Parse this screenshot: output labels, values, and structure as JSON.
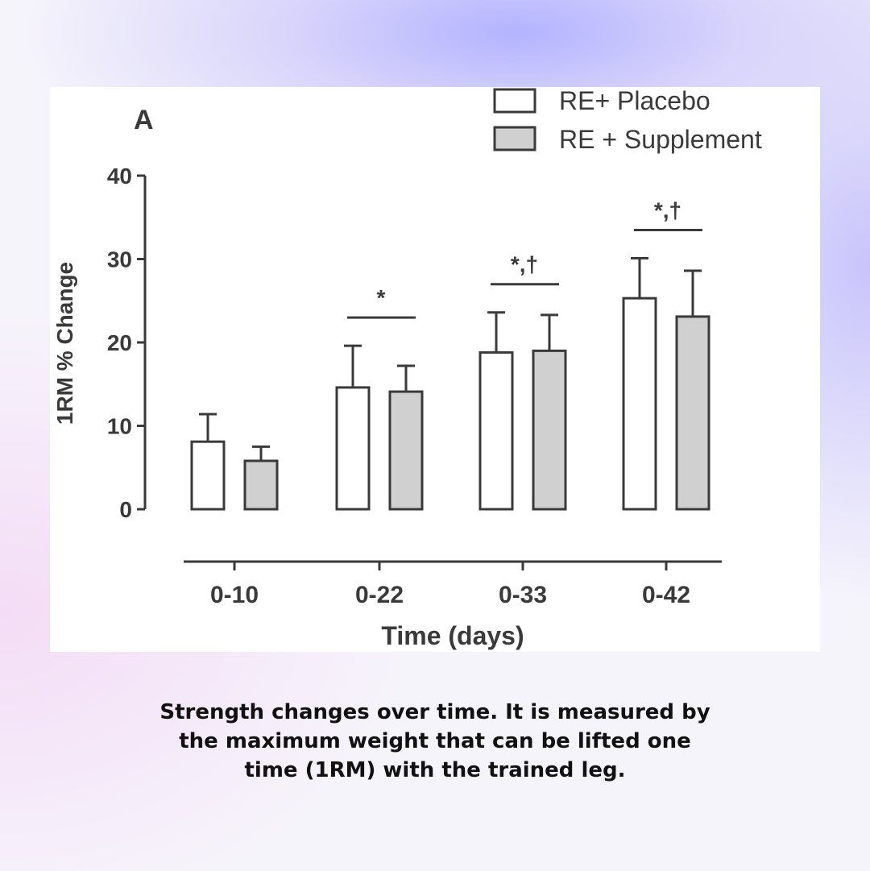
{
  "chart_data": {
    "type": "bar",
    "panel_label": "A",
    "categories": [
      "0-10",
      "0-22",
      "0-33",
      "0-42"
    ],
    "series": [
      {
        "name": "RE+ Placebo",
        "values": [
          8.1,
          14.6,
          18.8,
          25.3
        ],
        "errors": [
          3.3,
          5.0,
          4.8,
          4.8
        ],
        "color": "#ffffff"
      },
      {
        "name": "RE + Supplement",
        "values": [
          5.8,
          14.1,
          19.0,
          23.1
        ],
        "errors": [
          1.7,
          3.1,
          4.3,
          5.5
        ],
        "color": "#d0d0d0"
      }
    ],
    "ylim": [
      0,
      40
    ],
    "yticks": [
      "0",
      "10",
      "20",
      "30",
      "40"
    ],
    "ylabel": "1RM % Change",
    "xlabel": "Time (days)",
    "significance": [
      "",
      "*",
      "*,†",
      "*,†"
    ],
    "legend_position": "top-right",
    "grid": false
  },
  "caption": {
    "line1": "Strength changes over time. It is measured by",
    "line2": "the maximum weight that can be lifted one",
    "line3": "time (1RM) with the trained leg."
  },
  "colors": {
    "axis": "#3a3a3a",
    "supplement_fill": "#d0d0d0",
    "placebo_fill": "#ffffff",
    "caption_text": "#111111"
  }
}
